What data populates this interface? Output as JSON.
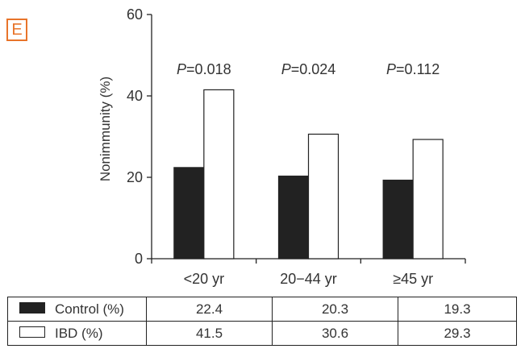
{
  "panel_label": "E",
  "chart_data": {
    "type": "bar",
    "ylabel": "Nonimmunity (%)",
    "ylim": [
      0,
      60
    ],
    "yticks": [
      0,
      20,
      40,
      60
    ],
    "categories": [
      "<20 yr",
      "20−44 yr",
      "≥45 yr"
    ],
    "series": [
      {
        "name": "Control (%)",
        "color": "#222222",
        "values": [
          22.4,
          20.3,
          19.3
        ]
      },
      {
        "name": "IBD (%)",
        "color": "#ffffff",
        "values": [
          41.5,
          30.6,
          29.3
        ]
      }
    ],
    "annotations": [
      {
        "prefix": "P",
        "value": "=0.018"
      },
      {
        "prefix": "P",
        "value": "=0.024"
      },
      {
        "prefix": "P",
        "value": "=0.112"
      }
    ],
    "grid": false
  },
  "table": {
    "rows": [
      {
        "label": "Control (%)",
        "values": [
          "22.4",
          "20.3",
          "19.3"
        ]
      },
      {
        "label": "IBD (%)",
        "values": [
          "41.5",
          "30.6",
          "29.3"
        ]
      }
    ]
  }
}
